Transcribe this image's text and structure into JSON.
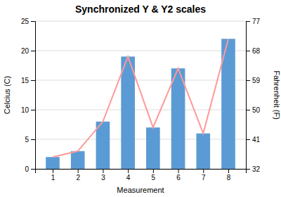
{
  "chart_data": {
    "type": "bar",
    "title": "Synchronized Y & Y2 scales",
    "xlabel": "Measurement",
    "ylabel": "Celcius (C)",
    "y2label": "Fahrenheit (F)",
    "x": [
      1,
      2,
      3,
      4,
      5,
      6,
      7,
      8
    ],
    "xlim": [
      0.3,
      8.7
    ],
    "xticks": [
      1,
      2,
      3,
      4,
      5,
      6,
      7,
      8
    ],
    "ylim": [
      0,
      25
    ],
    "yticks": [
      0,
      5,
      10,
      15,
      20,
      25
    ],
    "y2lim": [
      32,
      77
    ],
    "y2ticks": [
      32,
      41,
      50,
      59,
      68,
      77
    ],
    "grid": true,
    "series": [
      {
        "type": "bar",
        "color": "#5B9BD5",
        "values": [
          2,
          3,
          8,
          19,
          7,
          17,
          6,
          22
        ]
      },
      {
        "type": "line",
        "color": "#FF9999",
        "values": [
          2,
          3,
          8,
          19,
          7,
          17,
          6,
          22
        ]
      }
    ]
  }
}
